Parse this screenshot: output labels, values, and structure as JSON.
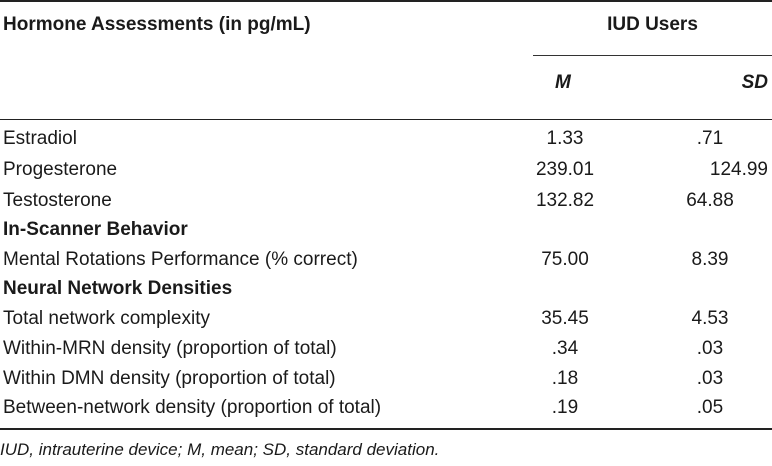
{
  "table": {
    "header_title": "Hormone Assessments (in pg/mL)",
    "group_label": "IUD Users",
    "col_m": "M",
    "col_sd": "SD",
    "rows": [
      {
        "label": "Estradiol",
        "m": "1.33",
        "sd": ".71"
      },
      {
        "label": "Progesterone",
        "m": "239.01",
        "sd": "124.99"
      },
      {
        "label": "Testosterone",
        "m": "132.82",
        "sd": "64.88"
      },
      {
        "label": "In-Scanner Behavior",
        "section": true
      },
      {
        "label": "Mental Rotations Performance (% correct)",
        "m": "75.00",
        "sd": "8.39"
      },
      {
        "label": "Neural Network Densities",
        "section": true
      },
      {
        "label": "Total network complexity",
        "m": "35.45",
        "sd": "4.53"
      },
      {
        "label": "Within-MRN density (proportion of total)",
        "m": ".34",
        "sd": ".03"
      },
      {
        "label": "Within DMN density (proportion of total)",
        "m": ".18",
        "sd": ".03"
      },
      {
        "label": "Between-network density (proportion of total)",
        "m": ".19",
        "sd": ".05"
      }
    ],
    "footnote": "IUD, intrauterine device; M, mean; SD, standard deviation."
  }
}
